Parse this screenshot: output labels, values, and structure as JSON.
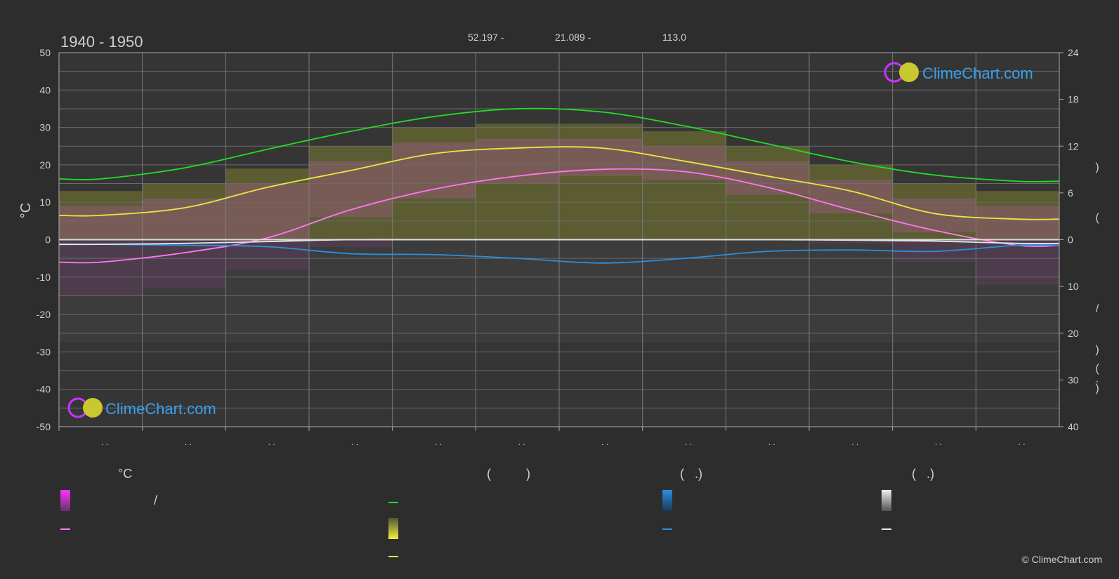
{
  "header": {
    "period": "1940 - 1950",
    "lat_text": "52.197 -",
    "lon_text": "21.089 -",
    "elev_text": "113.0"
  },
  "brand": {
    "logo_text": "ClimeChart.com",
    "copyright": "© ClimeChart.com"
  },
  "chart_data": {
    "type": "line",
    "x": [
      "Jan",
      "Feb",
      "Mar",
      "Apr",
      "May",
      "Jun",
      "Jul",
      "Aug",
      "Sep",
      "Oct",
      "Nov",
      "Dec"
    ],
    "x_tick_labels": [
      ". .",
      ". .",
      ". .",
      ". .",
      ". .",
      ". .",
      ". .",
      ". .",
      ". .",
      ". .",
      ". .",
      ". ."
    ],
    "ylabel_left": "°C",
    "ylim_left": [
      -50,
      50
    ],
    "yticks_left": [
      50,
      40,
      30,
      20,
      10,
      0,
      -10,
      -20,
      -30,
      -40,
      -50
    ],
    "ylim_right_upper": [
      0,
      24
    ],
    "yticks_right_upper": [
      24,
      18,
      12,
      6,
      0
    ],
    "ylim_right_lower": [
      0,
      40
    ],
    "yticks_right_lower": [
      10,
      20,
      30,
      40
    ],
    "right_axis_glyphs": [
      ")",
      "(",
      "/",
      ")",
      "(",
      "·",
      ")"
    ],
    "grid": true,
    "series": [
      {
        "key": "daylight",
        "color": "#22dd22",
        "axis": "right_upper",
        "values": [
          7.8,
          9.2,
          11.6,
          13.9,
          15.8,
          16.8,
          16.4,
          14.6,
          12.3,
          10.0,
          8.3,
          7.5
        ]
      },
      {
        "key": "sunshine_temp",
        "color": "#e8e840",
        "axis": "left",
        "values": [
          6.5,
          8.5,
          14.0,
          18.5,
          23.0,
          24.5,
          24.5,
          21.0,
          17.0,
          13.0,
          7.0,
          5.5
        ]
      },
      {
        "key": "mean_temp",
        "color": "#ff77ee",
        "axis": "left",
        "values": [
          -6.0,
          -3.5,
          0.5,
          8.0,
          13.5,
          17.0,
          18.8,
          18.2,
          14.0,
          8.0,
          2.5,
          -1.5
        ]
      },
      {
        "key": "rain",
        "color": "#2b8fe0",
        "axis": "right_lower",
        "values": [
          1.0,
          1.2,
          1.5,
          3.0,
          3.2,
          4.0,
          5.0,
          4.0,
          2.5,
          2.2,
          2.5,
          1.2
        ]
      },
      {
        "key": "snow",
        "color": "#e8e8e8",
        "axis": "right_lower",
        "values": [
          1.0,
          0.8,
          0.4,
          0.0,
          0.0,
          0.0,
          0.0,
          0.0,
          0.0,
          0.1,
          0.3,
          0.8
        ]
      }
    ],
    "bands": {
      "daily_max_band": [
        13,
        15,
        19,
        25,
        30,
        31,
        31,
        29,
        25,
        20,
        15,
        13
      ],
      "daily_min_band": [
        -15,
        -13,
        -8,
        -2,
        3,
        7,
        9,
        8,
        4,
        -1,
        -6,
        -12
      ]
    }
  },
  "legend": {
    "col1": {
      "header": "°C",
      "row1": "/"
    },
    "col2": {
      "header": "(          )"
    },
    "col3": {
      "header": "(   .)"
    },
    "col4": {
      "header": "(   .)"
    }
  }
}
